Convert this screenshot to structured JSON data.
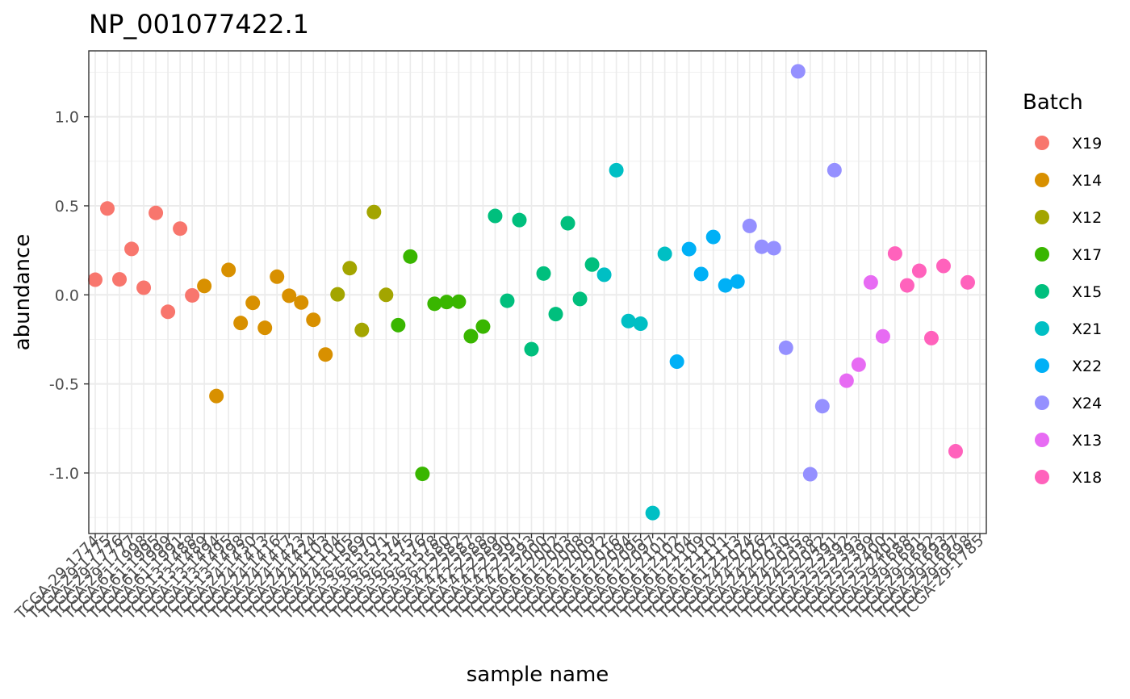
{
  "chart_data": {
    "type": "scatter",
    "title": "NP_001077422.1",
    "xlabel": "sample name",
    "ylabel": "abundance",
    "ylim": [
      -1.34,
      1.37
    ],
    "y_ticks": [
      -1.0,
      -0.5,
      0.0,
      0.5,
      1.0
    ],
    "y_tick_labels": [
      "-1.0",
      "-0.5",
      "0.0",
      "0.5",
      "1.0"
    ],
    "grid": true,
    "legend": {
      "title": "Batch",
      "position": "right",
      "entries": [
        {
          "name": "X19",
          "color": "#F8766D"
        },
        {
          "name": "X14",
          "color": "#D89000"
        },
        {
          "name": "X12",
          "color": "#A3A500"
        },
        {
          "name": "X17",
          "color": "#39B600"
        },
        {
          "name": "X15",
          "color": "#00BF7D"
        },
        {
          "name": "X21",
          "color": "#00BFC4"
        },
        {
          "name": "X22",
          "color": "#00B0F6"
        },
        {
          "name": "X24",
          "color": "#9590FF"
        },
        {
          "name": "X13",
          "color": "#E76BF3"
        },
        {
          "name": "X18",
          "color": "#FF62BC"
        }
      ]
    },
    "x_tick_labels": [
      "TCGA-29-1774",
      "TCGA-29-1775",
      "TCGA-29-1776",
      "TCGA-29-1777",
      "TCGA-61-1998",
      "TCGA-61-1995",
      "TCGA-61-1999",
      "TCGA-61-1991",
      "TCGA-13-1488",
      "TCGA-13-1489",
      "TCGA-13-1494",
      "TCGA-13-1495",
      "TCGA-13-1498",
      "TCGA-24-1430",
      "TCGA-24-1413",
      "TCGA-24-1416",
      "TCGA-24-1417",
      "TCGA-24-1423",
      "TCGA-24-1424",
      "TCGA-24-1103",
      "TCGA-24-1104",
      "TCGA-24-1105",
      "TCGA-36-1569",
      "TCGA-36-1570",
      "TCGA-36-1571",
      "TCGA-36-1574",
      "TCGA-36-1575",
      "TCGA-36-1576",
      "TCGA-36-1578",
      "TCGA-36-1580",
      "TCGA-42-2582",
      "TCGA-42-2587",
      "TCGA-42-2588",
      "TCGA-42-2589",
      "TCGA-42-2590",
      "TCGA-42-2591",
      "TCGA-42-2593",
      "TCGA-61-2000",
      "TCGA-61-2002",
      "TCGA-61-2003",
      "TCGA-61-2008",
      "TCGA-61-2009",
      "TCGA-61-2012",
      "TCGA-61-2016",
      "TCGA-61-2094",
      "TCGA-61-2095",
      "TCGA-61-2097",
      "TCGA-61-2101",
      "TCGA-61-2102",
      "TCGA-61-2104",
      "TCGA-61-2109",
      "TCGA-61-2110",
      "TCGA-61-2111",
      "TCGA-61-2113",
      "TCGA-24-2024",
      "TCGA-24-2026",
      "TCGA-24-2027",
      "TCGA-24-2030",
      "TCGA-24-2035",
      "TCGA-24-2038",
      "TCGA-25-2042",
      "TCGA-25-2391",
      "TCGA-25-2392",
      "TCGA-25-2393",
      "TCGA-25-2399",
      "TCGA-25-2400",
      "TCGA-25-2401",
      "TCGA-29-1688",
      "TCGA-29-1691",
      "TCGA-29-1692",
      "TCGA-29-1693",
      "TCGA-29-1697",
      "TCGA-29-1698",
      "TCGA-29-1785"
    ],
    "series": [
      {
        "name": "X19",
        "points": [
          [
            1,
            0.085
          ],
          [
            2,
            0.485
          ],
          [
            3,
            0.087
          ],
          [
            4,
            0.258
          ],
          [
            5,
            0.04
          ],
          [
            6,
            0.46
          ],
          [
            7,
            -0.095
          ],
          [
            8,
            0.372
          ],
          [
            9,
            -0.003
          ]
        ]
      },
      {
        "name": "X14",
        "points": [
          [
            10,
            0.05
          ],
          [
            11,
            -0.568
          ],
          [
            12,
            0.14
          ],
          [
            13,
            -0.158
          ],
          [
            14,
            -0.045
          ],
          [
            15,
            -0.185
          ],
          [
            16,
            0.102
          ],
          [
            17,
            -0.005
          ],
          [
            18,
            -0.043
          ],
          [
            19,
            -0.14
          ],
          [
            20,
            -0.335
          ]
        ]
      },
      {
        "name": "X12",
        "points": [
          [
            21,
            0.003
          ],
          [
            22,
            0.15
          ],
          [
            23,
            -0.197
          ],
          [
            24,
            0.465
          ],
          [
            25,
            0.0
          ]
        ]
      },
      {
        "name": "X17",
        "points": [
          [
            26,
            -0.17
          ],
          [
            27,
            0.215
          ],
          [
            28,
            -1.005
          ],
          [
            29,
            -0.05
          ],
          [
            30,
            -0.04
          ],
          [
            31,
            -0.038
          ],
          [
            32,
            -0.232
          ],
          [
            33,
            -0.178
          ]
        ]
      },
      {
        "name": "X15",
        "points": [
          [
            34,
            0.443
          ],
          [
            35,
            -0.033
          ],
          [
            36,
            0.42
          ],
          [
            37,
            -0.305
          ],
          [
            38,
            0.12
          ],
          [
            39,
            -0.108
          ],
          [
            40,
            0.402
          ],
          [
            41,
            -0.023
          ],
          [
            42,
            0.17
          ]
        ]
      },
      {
        "name": "X21",
        "points": [
          [
            43,
            0.113
          ],
          [
            44,
            0.7
          ],
          [
            45,
            -0.147
          ],
          [
            46,
            -0.162
          ],
          [
            47,
            -1.225
          ],
          [
            48,
            0.23
          ]
        ]
      },
      {
        "name": "X22",
        "points": [
          [
            49,
            -0.375
          ],
          [
            50,
            0.257
          ],
          [
            51,
            0.117
          ],
          [
            52,
            0.325
          ],
          [
            53,
            0.053
          ],
          [
            54,
            0.075
          ]
        ]
      },
      {
        "name": "X24",
        "points": [
          [
            55,
            0.387
          ],
          [
            56,
            0.27
          ],
          [
            57,
            0.262
          ],
          [
            58,
            -0.297
          ],
          [
            59,
            1.255
          ],
          [
            60,
            -1.007
          ],
          [
            61,
            -0.625
          ],
          [
            62,
            0.7
          ]
        ]
      },
      {
        "name": "X13",
        "points": [
          [
            63,
            -0.482
          ],
          [
            64,
            -0.392
          ],
          [
            65,
            0.07
          ],
          [
            66,
            -0.233
          ]
        ]
      },
      {
        "name": "X18",
        "points": [
          [
            67,
            0.232
          ],
          [
            68,
            0.053
          ],
          [
            69,
            0.135
          ],
          [
            70,
            -0.243
          ],
          [
            71,
            0.162
          ],
          [
            72,
            -0.878
          ],
          [
            73,
            0.07
          ]
        ]
      }
    ]
  }
}
